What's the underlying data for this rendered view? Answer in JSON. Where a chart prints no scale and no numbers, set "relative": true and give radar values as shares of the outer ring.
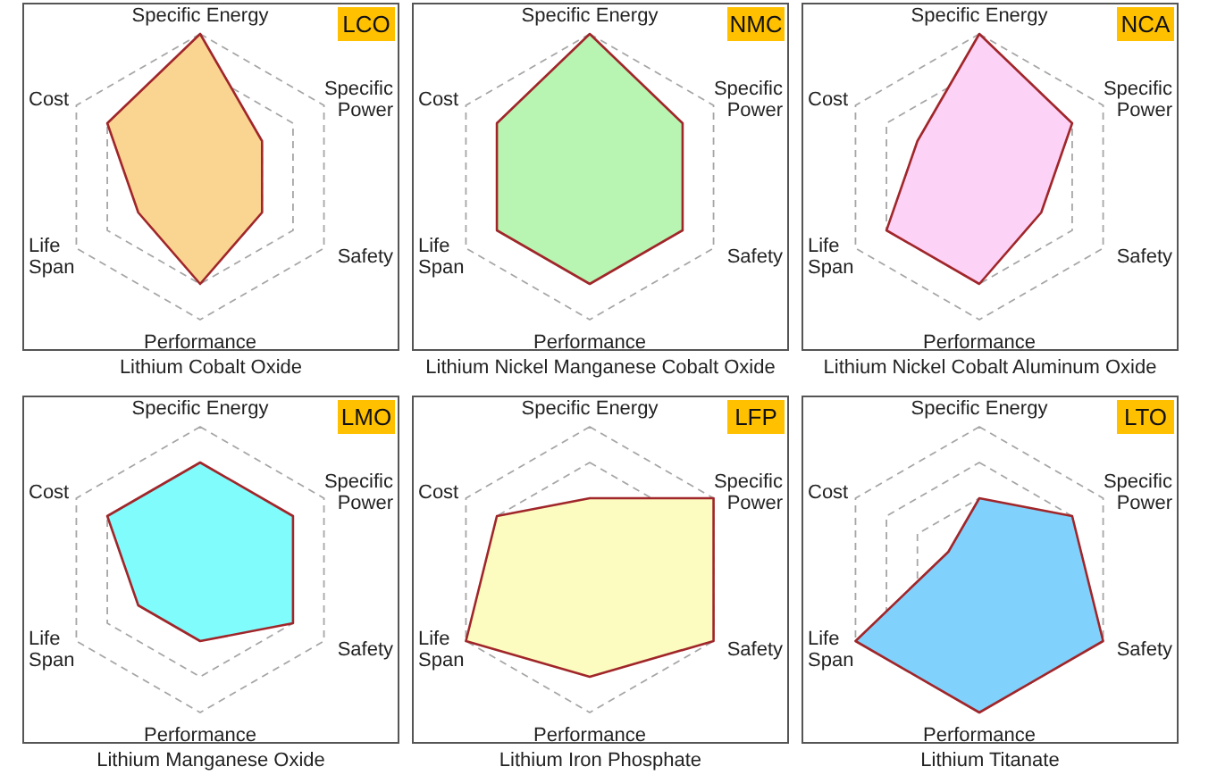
{
  "chart_data": [
    {
      "type": "radar",
      "title": "Lithium Cobalt Oxide",
      "annotations": [
        "LCO"
      ],
      "relative": true,
      "grid": true,
      "categories": [
        "Specific Energy",
        "Specific Power",
        "Safety",
        "Performance",
        "Life Span",
        "Cost"
      ],
      "series": [
        {
          "color": "#fad592",
          "values": [
            1,
            0.5,
            0.5,
            0.75,
            0.5,
            0.75
          ]
        }
      ]
    },
    {
      "type": "radar",
      "title": "Lithium Nickel Manganese Cobalt Oxide",
      "annotations": [
        "NMC"
      ],
      "relative": true,
      "grid": true,
      "categories": [
        "Specific Energy",
        "Specific Power",
        "Safety",
        "Performance",
        "Life Span",
        "Cost"
      ],
      "series": [
        {
          "color": "#b8f5b2",
          "values": [
            1,
            0.75,
            0.75,
            0.75,
            0.75,
            0.75
          ]
        }
      ]
    },
    {
      "type": "radar",
      "title": "Lithium Nickel Cobalt Aluminum Oxide",
      "annotations": [
        "NCA"
      ],
      "relative": true,
      "grid": true,
      "categories": [
        "Specific Energy",
        "Specific Power",
        "Safety",
        "Performance",
        "Life Span",
        "Cost"
      ],
      "series": [
        {
          "color": "#fcd2f6",
          "values": [
            1,
            0.75,
            0.5,
            0.75,
            0.75,
            0.5
          ]
        }
      ]
    },
    {
      "type": "radar",
      "title": "Lithium Manganese Oxide",
      "annotations": [
        "LMO"
      ],
      "relative": true,
      "grid": true,
      "categories": [
        "Specific Energy",
        "Specific Power",
        "Safety",
        "Performance",
        "Life Span",
        "Cost"
      ],
      "series": [
        {
          "color": "#80fcfc",
          "values": [
            0.75,
            0.75,
            0.75,
            0.5,
            0.5,
            0.75
          ]
        }
      ]
    },
    {
      "type": "radar",
      "title": "Lithium Iron Phosphate",
      "annotations": [
        "LFP"
      ],
      "relative": true,
      "grid": true,
      "categories": [
        "Specific Energy",
        "Specific Power",
        "Safety",
        "Performance",
        "Life Span",
        "Cost"
      ],
      "series": [
        {
          "color": "#fcfcc0",
          "values": [
            0.5,
            1,
            1,
            0.75,
            1,
            0.75
          ]
        }
      ]
    },
    {
      "type": "radar",
      "title": "Lithium Titanate",
      "annotations": [
        "LTO"
      ],
      "relative": true,
      "grid": true,
      "categories": [
        "Specific Energy",
        "Specific Power",
        "Safety",
        "Performance",
        "Life Span",
        "Cost"
      ],
      "series": [
        {
          "color": "#80d2fc",
          "values": [
            0.5,
            0.75,
            1,
            1,
            1,
            0.25
          ]
        }
      ]
    }
  ]
}
